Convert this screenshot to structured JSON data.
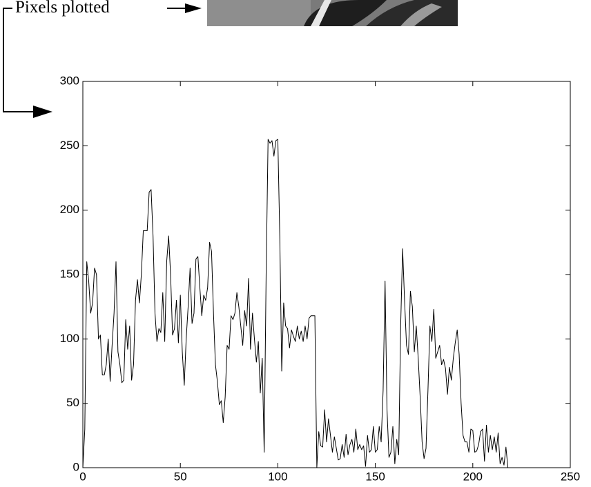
{
  "chart_data": {
    "type": "line",
    "annotation": "Pixels plotted",
    "x": [
      0,
      1,
      2,
      3,
      4,
      5,
      6,
      7,
      8,
      9,
      10,
      11,
      12,
      13,
      14,
      15,
      16,
      17,
      18,
      19,
      20,
      21,
      22,
      23,
      24,
      25,
      26,
      27,
      28,
      29,
      30,
      31,
      32,
      33,
      34,
      35,
      36,
      37,
      38,
      39,
      40,
      41,
      42,
      43,
      44,
      45,
      46,
      47,
      48,
      49,
      50,
      51,
      52,
      53,
      54,
      55,
      56,
      57,
      58,
      59,
      60,
      61,
      62,
      63,
      64,
      65,
      66,
      67,
      68,
      69,
      70,
      71,
      72,
      73,
      74,
      75,
      76,
      77,
      78,
      79,
      80,
      81,
      82,
      83,
      84,
      85,
      86,
      87,
      88,
      89,
      90,
      91,
      92,
      93,
      94,
      95,
      96,
      97,
      98,
      99,
      100,
      101,
      102,
      103,
      104,
      105,
      106,
      107,
      108,
      109,
      110,
      111,
      112,
      113,
      114,
      115,
      116,
      117,
      118,
      119,
      120,
      121,
      122,
      123,
      124,
      125,
      126,
      127,
      128,
      129,
      130,
      131,
      132,
      133,
      134,
      135,
      136,
      137,
      138,
      139,
      140,
      141,
      142,
      143,
      144,
      145,
      146,
      147,
      148,
      149,
      150,
      151,
      152,
      153,
      154,
      155,
      156,
      157,
      158,
      159,
      160,
      161,
      162,
      163,
      164,
      165,
      166,
      167,
      168,
      169,
      170,
      171,
      172,
      173,
      174,
      175,
      176,
      177,
      178,
      179,
      180,
      181,
      182,
      183,
      184,
      185,
      186,
      187,
      188,
      189,
      190,
      191,
      192,
      193,
      194,
      195,
      196,
      197,
      198,
      199,
      200,
      201,
      202,
      203,
      204,
      205,
      206,
      207,
      208,
      209,
      210,
      211,
      212,
      213,
      214,
      215,
      216,
      217,
      218
    ],
    "values": [
      0,
      30,
      160,
      145,
      120,
      128,
      155,
      150,
      100,
      103,
      72,
      72,
      80,
      100,
      67,
      95,
      120,
      160,
      90,
      80,
      66,
      68,
      115,
      92,
      110,
      68,
      80,
      130,
      146,
      128,
      150,
      184,
      184,
      184,
      214,
      216,
      180,
      120,
      98,
      108,
      105,
      136,
      98,
      160,
      180,
      150,
      103,
      108,
      130,
      97,
      134,
      90,
      64,
      100,
      125,
      155,
      112,
      120,
      162,
      164,
      140,
      118,
      134,
      130,
      140,
      175,
      168,
      120,
      80,
      67,
      49,
      52,
      35,
      55,
      95,
      92,
      118,
      115,
      120,
      136,
      125,
      110,
      95,
      122,
      110,
      147,
      92,
      120,
      100,
      82,
      98,
      58,
      85,
      12,
      150,
      255,
      252,
      254,
      242,
      254,
      255,
      180,
      75,
      128,
      110,
      108,
      93,
      107,
      102,
      98,
      110,
      100,
      106,
      98,
      110,
      100,
      116,
      118,
      118,
      118,
      0,
      28,
      17,
      16,
      45,
      20,
      38,
      25,
      12,
      24,
      15,
      6,
      7,
      18,
      8,
      26,
      10,
      18,
      22,
      12,
      30,
      14,
      18,
      14,
      17,
      1,
      25,
      12,
      14,
      32,
      12,
      14,
      32,
      20,
      60,
      145,
      45,
      8,
      12,
      32,
      3,
      22,
      10,
      110,
      170,
      130,
      95,
      88,
      137,
      125,
      90,
      110,
      85,
      55,
      20,
      7,
      15,
      60,
      110,
      98,
      123,
      85,
      90,
      95,
      80,
      84,
      77,
      57,
      78,
      68,
      85,
      97,
      107,
      88,
      50,
      25,
      20,
      20,
      12,
      30,
      29,
      12,
      13,
      18,
      28,
      30,
      5,
      33,
      12,
      25,
      14,
      24,
      12,
      27,
      3,
      8,
      2,
      16,
      0
    ],
    "color": "#000000",
    "xlim": [
      0,
      250
    ],
    "xticks": [
      0,
      50,
      100,
      150,
      200,
      250
    ],
    "ylim": [
      0,
      300
    ],
    "yticks": [
      0,
      50,
      100,
      150,
      200,
      250,
      300
    ],
    "grid": false
  }
}
